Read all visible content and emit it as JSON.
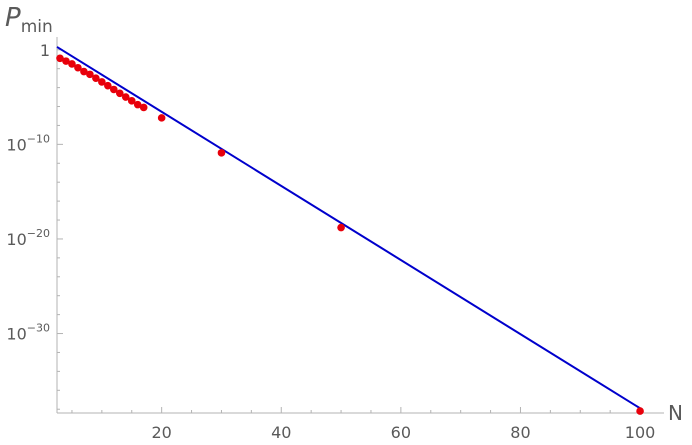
{
  "chart_data": {
    "type": "scatter",
    "title": "",
    "ylabel_main": "P",
    "ylabel_sub": "min",
    "xlabel": "N",
    "log_y": true,
    "xlim": [
      2.5,
      104
    ],
    "ylim_log10": [
      -38.4,
      1.35
    ],
    "x_ticks": [
      {
        "value": 20,
        "label": "20"
      },
      {
        "value": 40,
        "label": "40"
      },
      {
        "value": 60,
        "label": "60"
      },
      {
        "value": 80,
        "label": "80"
      },
      {
        "value": 100,
        "label": "100"
      }
    ],
    "y_ticks": [
      {
        "log10": 0,
        "base": "1",
        "exp": ""
      },
      {
        "log10": -10,
        "base": "10",
        "exp": "−10"
      },
      {
        "log10": -20,
        "base": "10",
        "exp": "−20"
      },
      {
        "log10": -30,
        "base": "10",
        "exp": "−30"
      }
    ],
    "series": [
      {
        "kind": "points",
        "color": "#e8000b",
        "x": [
          3,
          4,
          5,
          6,
          7,
          8,
          9,
          10,
          11,
          12,
          13,
          14,
          15,
          16,
          17,
          20,
          30,
          50,
          100
        ],
        "log10_y": [
          -0.9,
          -1.2,
          -1.5,
          -1.9,
          -2.3,
          -2.6,
          -3.0,
          -3.4,
          -3.8,
          -4.2,
          -4.6,
          -5.0,
          -5.4,
          -5.8,
          -6.1,
          -7.2,
          -10.9,
          -18.8,
          -38.2
        ]
      },
      {
        "kind": "fit-line",
        "color": "#0000cc",
        "x": [
          2.5,
          100
        ],
        "log10_y": [
          0.3,
          -37.9
        ]
      }
    ],
    "grid": false
  }
}
